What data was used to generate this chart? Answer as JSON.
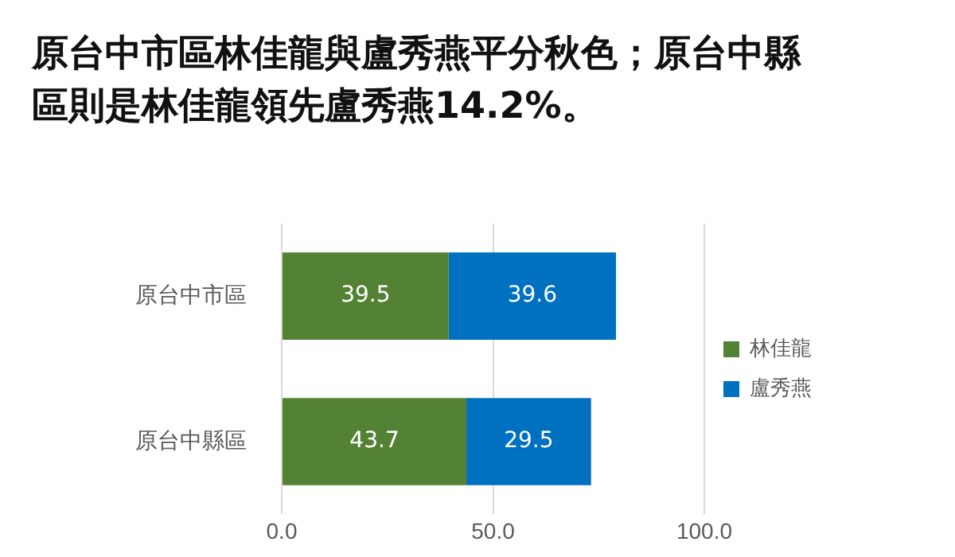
{
  "chart_data": {
    "type": "bar",
    "orientation": "horizontal",
    "stacked": true,
    "title": "原台中市區林佳龍與盧秀燕平分秋色；原台中縣區則是林佳龍領先盧秀燕14.2%。",
    "categories": [
      "原台中市區",
      "原台中縣區"
    ],
    "series": [
      {
        "name": "林佳龍",
        "color": "#548235",
        "values": [
          39.5,
          43.7
        ]
      },
      {
        "name": "盧秀燕",
        "color": "#0070c0",
        "values": [
          39.6,
          29.5
        ]
      }
    ],
    "xlim": [
      0,
      100
    ],
    "xticks": [
      {
        "value": 0,
        "label": "0.0"
      },
      {
        "value": 50,
        "label": "50.0"
      },
      {
        "value": 100,
        "label": "100.0"
      }
    ],
    "grid": "x",
    "legend": "right",
    "data_labels": true
  }
}
